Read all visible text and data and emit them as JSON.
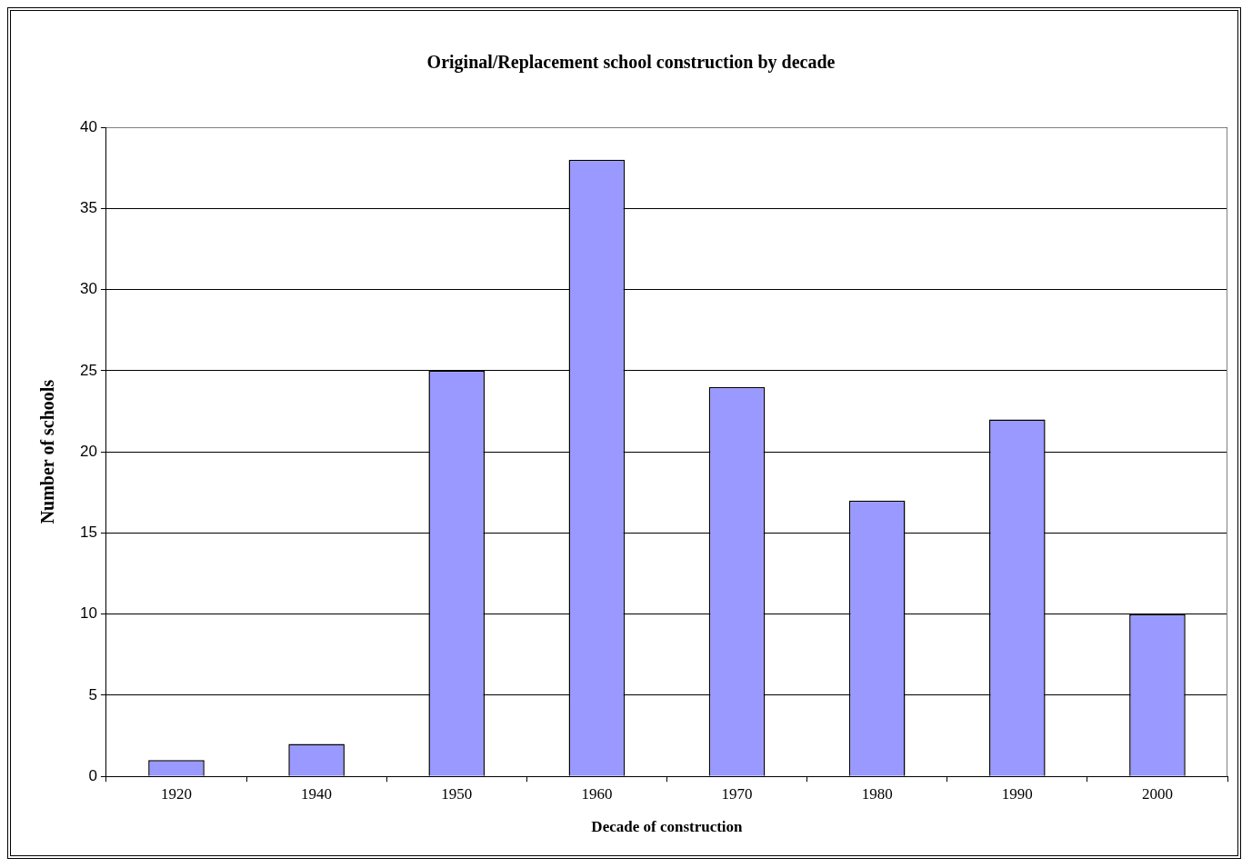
{
  "chart_data": {
    "type": "bar",
    "title": "Original/Replacement school construction by decade",
    "xlabel": "Decade of construction",
    "ylabel": "Number of schools",
    "categories": [
      "1920",
      "1940",
      "1950",
      "1960",
      "1970",
      "1980",
      "1990",
      "2000"
    ],
    "values": [
      1,
      2,
      25,
      38,
      24,
      17,
      22,
      10
    ],
    "color": "#9999ff",
    "ylim": [
      0,
      40
    ],
    "yticks": [
      0,
      5,
      10,
      15,
      20,
      25,
      30,
      35,
      40
    ],
    "grid": "y"
  }
}
